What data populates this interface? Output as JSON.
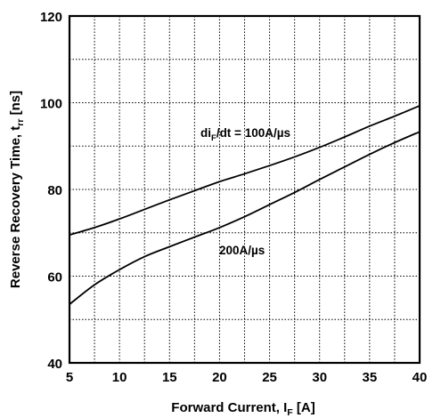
{
  "chart_data": {
    "type": "line",
    "xlabel_main": "Forward Current, I",
    "xlabel_sub": "F",
    "xlabel_unit": " [A]",
    "ylabel_main": "Reverse Recovery Time, t",
    "ylabel_sub": "rr",
    "ylabel_unit": " [ns]",
    "xlim": [
      5,
      40
    ],
    "ylim": [
      40,
      120
    ],
    "xticks": [
      5,
      10,
      15,
      20,
      25,
      30,
      35,
      40
    ],
    "yticks": [
      40,
      60,
      80,
      100,
      120
    ],
    "grid": true,
    "series": [
      {
        "label_main": "di",
        "label_sub": "F",
        "label_rest": "/dt = 100A/µs",
        "x": [
          5,
          7.5,
          10,
          12.5,
          15,
          17.5,
          20,
          22.5,
          25,
          27.5,
          30,
          32.5,
          35,
          37.5,
          40
        ],
        "y": [
          69.5,
          71.2,
          73.2,
          75.4,
          77.6,
          79.7,
          81.8,
          83.6,
          85.5,
          87.5,
          89.7,
          92.1,
          94.6,
          96.9,
          99.3
        ]
      },
      {
        "label": "200A/µs",
        "x": [
          5,
          7.5,
          10,
          12.5,
          15,
          17.5,
          20,
          22.5,
          25,
          27.5,
          30,
          32.5,
          35,
          37.5,
          40
        ],
        "y": [
          53.5,
          58.0,
          61.5,
          64.5,
          66.8,
          69.0,
          71.2,
          73.7,
          76.5,
          79.3,
          82.3,
          85.2,
          88.1,
          90.8,
          93.3
        ]
      }
    ]
  }
}
